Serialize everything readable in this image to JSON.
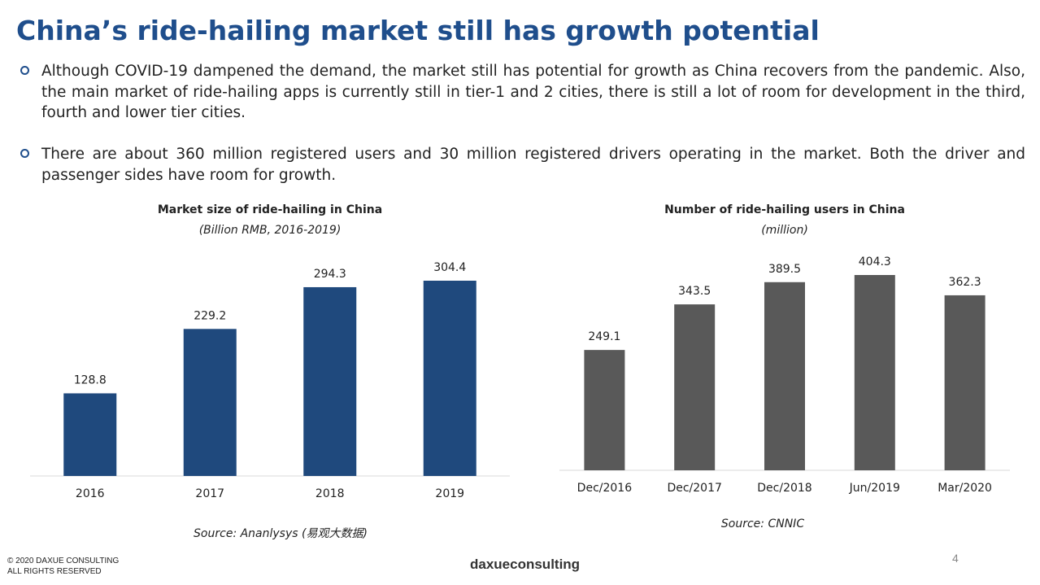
{
  "slide": {
    "title": "China’s ride-hailing market still has growth potential",
    "bullets": [
      "Although COVID-19 dampened the demand, the market still has potential for growth as China recovers from the pandemic. Also, the main market of ride-hailing apps is currently still in tier-1 and 2 cities, there is still a lot of room for development in the third, fourth and lower tier cities.",
      "There are about 360 million registered users and 30 million registered drivers operating in the market. Both the driver and passenger sides have room for growth."
    ],
    "copyright": [
      "© 2020 DAXUE CONSULTING",
      "ALL RIGHTS RESERVED"
    ],
    "logo": "daxueconsulting",
    "page_number": "4"
  },
  "chart_data": [
    {
      "type": "bar",
      "title": "Market size of ride-hailing in China",
      "subtitle": "(Billion RMB, 2016-2019)",
      "categories": [
        "2016",
        "2017",
        "2018",
        "2019"
      ],
      "values": [
        128.8,
        229.2,
        294.3,
        304.4
      ],
      "color": "#1f497d",
      "source": "Source: Ananlysys (易观大数据)"
    },
    {
      "type": "bar",
      "title": "Number of ride-hailing users in China",
      "subtitle": "(million)",
      "categories": [
        "Dec/2016",
        "Dec/2017",
        "Dec/2018",
        "Jun/2019",
        "Mar/2020"
      ],
      "values": [
        249.1,
        343.5,
        389.5,
        404.3,
        362.3
      ],
      "color": "#595959",
      "source": "Source: CNNIC"
    }
  ]
}
